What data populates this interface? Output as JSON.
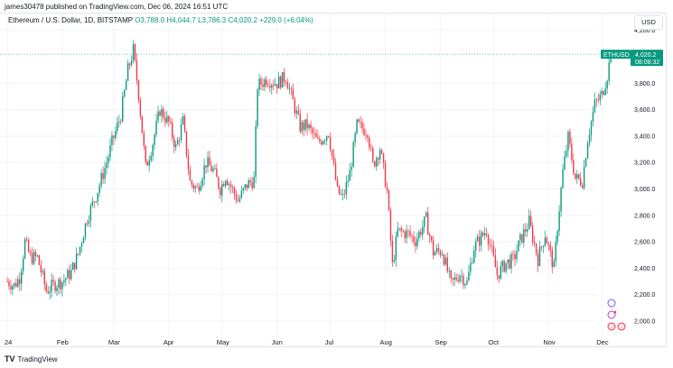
{
  "published": "james30478 published on TradingView.com, Dec 06, 2024 16:51 UTC",
  "legend": {
    "symbol": "Ethereum / U.S. Dollar, 1D, BITSTAMP",
    "open": "O3,788.0",
    "high": "H4,044.7",
    "low": "L3,786.3",
    "close": "C4,020.2",
    "change": "+229.0 (+6.04%)"
  },
  "currency_button": "USD",
  "price_tag": {
    "symbol": "ETHUSD",
    "price": "4,020.2",
    "countdown": "08:08:32"
  },
  "footer": {
    "logo": "TV",
    "brand": "TradingView"
  },
  "colors": {
    "up": "#089981",
    "down": "#f23645",
    "grid": "#f0f3fa"
  },
  "icons": [
    "plus-event-icon",
    "dividend-event-icon",
    "us-flag-event-icon",
    "us-flag-event-icon"
  ],
  "chart_data": {
    "type": "candlestick",
    "title": "Ethereum / U.S. Dollar, 1D, BITSTAMP",
    "x_tick_labels": [
      "24",
      "Feb",
      "Mar",
      "Apr",
      "May",
      "Jun",
      "Jul",
      "Aug",
      "Sep",
      "Oct",
      "Nov",
      "Dec"
    ],
    "y_tick_labels": [
      "4,200.0",
      "3,800.0",
      "3,600.0",
      "3,400.0",
      "3,200.0",
      "3,000.0",
      "2,800.0",
      "2,600.0",
      "2,400.0",
      "2,200.0",
      "2,000.0"
    ],
    "y_ticks": [
      4200,
      3800,
      3600,
      3400,
      3200,
      3000,
      2800,
      2600,
      2400,
      2200,
      2000
    ],
    "ylim": [
      1920,
      4300
    ],
    "grid": true,
    "close_path": [
      [
        "2024-01-01",
        2300
      ],
      [
        "2024-01-05",
        2270
      ],
      [
        "2024-01-08",
        2330
      ],
      [
        "2024-01-11",
        2600
      ],
      [
        "2024-01-14",
        2480
      ],
      [
        "2024-01-18",
        2480
      ],
      [
        "2024-01-23",
        2230
      ],
      [
        "2024-01-28",
        2280
      ],
      [
        "2024-02-01",
        2300
      ],
      [
        "2024-02-06",
        2370
      ],
      [
        "2024-02-10",
        2510
      ],
      [
        "2024-02-15",
        2780
      ],
      [
        "2024-02-20",
        2950
      ],
      [
        "2024-02-26",
        3200
      ],
      [
        "2024-02-29",
        3350
      ],
      [
        "2024-03-05",
        3560
      ],
      [
        "2024-03-09",
        3900
      ],
      [
        "2024-03-12",
        4050
      ],
      [
        "2024-03-15",
        3720
      ],
      [
        "2024-03-19",
        3160
      ],
      [
        "2024-03-23",
        3350
      ],
      [
        "2024-03-27",
        3600
      ],
      [
        "2024-04-01",
        3500
      ],
      [
        "2024-04-05",
        3310
      ],
      [
        "2024-04-09",
        3510
      ],
      [
        "2024-04-13",
        3050
      ],
      [
        "2024-04-17",
        3000
      ],
      [
        "2024-04-22",
        3200
      ],
      [
        "2024-04-26",
        3140
      ],
      [
        "2024-04-30",
        3000
      ],
      [
        "2024-05-03",
        3100
      ],
      [
        "2024-05-10",
        2910
      ],
      [
        "2024-05-15",
        3030
      ],
      [
        "2024-05-19",
        3070
      ],
      [
        "2024-05-21",
        3780
      ],
      [
        "2024-05-26",
        3830
      ],
      [
        "2024-06-01",
        3800
      ],
      [
        "2024-06-06",
        3850
      ],
      [
        "2024-06-10",
        3660
      ],
      [
        "2024-06-14",
        3470
      ],
      [
        "2024-06-18",
        3480
      ],
      [
        "2024-06-24",
        3350
      ],
      [
        "2024-06-30",
        3430
      ],
      [
        "2024-07-05",
        2980
      ],
      [
        "2024-07-08",
        2930
      ],
      [
        "2024-07-12",
        3120
      ],
      [
        "2024-07-16",
        3480
      ],
      [
        "2024-07-22",
        3440
      ],
      [
        "2024-07-25",
        3180
      ],
      [
        "2024-07-29",
        3310
      ],
      [
        "2024-08-02",
        2980
      ],
      [
        "2024-08-05",
        2420
      ],
      [
        "2024-08-08",
        2680
      ],
      [
        "2024-08-14",
        2660
      ],
      [
        "2024-08-18",
        2610
      ],
      [
        "2024-08-24",
        2770
      ],
      [
        "2024-08-28",
        2520
      ],
      [
        "2024-09-02",
        2530
      ],
      [
        "2024-09-07",
        2280
      ],
      [
        "2024-09-12",
        2360
      ],
      [
        "2024-09-16",
        2290
      ],
      [
        "2024-09-20",
        2560
      ],
      [
        "2024-09-27",
        2690
      ],
      [
        "2024-10-03",
        2350
      ],
      [
        "2024-10-08",
        2440
      ],
      [
        "2024-10-12",
        2460
      ],
      [
        "2024-10-16",
        2610
      ],
      [
        "2024-10-21",
        2750
      ],
      [
        "2024-10-26",
        2470
      ],
      [
        "2024-10-30",
        2660
      ],
      [
        "2024-11-04",
        2400
      ],
      [
        "2024-11-06",
        2720
      ],
      [
        "2024-11-09",
        3130
      ],
      [
        "2024-11-12",
        3390
      ],
      [
        "2024-11-16",
        3080
      ],
      [
        "2024-11-20",
        3060
      ],
      [
        "2024-11-23",
        3380
      ],
      [
        "2024-11-27",
        3640
      ],
      [
        "2024-12-01",
        3710
      ],
      [
        "2024-12-04",
        3860
      ],
      [
        "2024-12-06",
        4020
      ]
    ]
  }
}
